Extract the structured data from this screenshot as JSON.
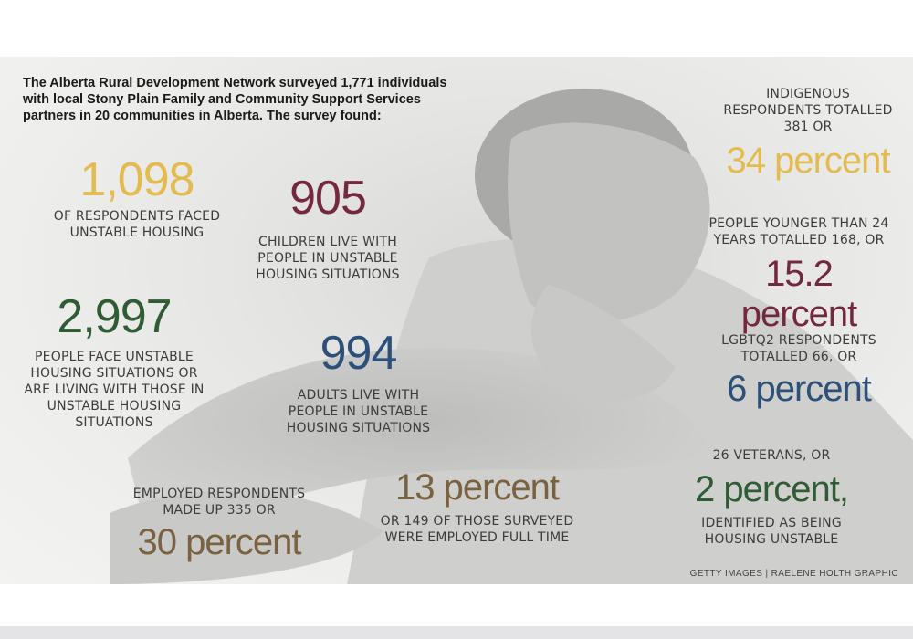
{
  "intro": "The Alberta Rural Development Network surveyed 1,771 individuals with local Stony Plain Family and Community Support Services partners in 20 communities in Alberta. The survey found:",
  "colors": {
    "yellow": "#e3bb4f",
    "maroon": "#73283f",
    "green": "#2f5b35",
    "blue": "#2c5078",
    "brown": "#7a6140"
  },
  "stats": {
    "unstable_housing": {
      "number": "1,098",
      "caption": "OF RESPONDENTS FACED UNSTABLE HOUSING"
    },
    "children": {
      "number": "905",
      "caption": "CHILDREN LIVE WITH PEOPLE IN UNSTABLE HOUSING SITUATIONS"
    },
    "people_face": {
      "number": "2,997",
      "caption": "PEOPLE FACE UNSTABLE HOUSING SITUATIONS OR ARE LIVING WITH THOSE IN UNSTABLE HOUSING SITUATIONS"
    },
    "adults": {
      "number": "994",
      "caption": "ADULTS LIVE WITH PEOPLE IN UNSTABLE HOUSING SITUATIONS"
    },
    "employed": {
      "caption": "EMPLOYED RESPONDENTS MADE UP 335 OR",
      "value": "30 percent"
    },
    "full_time": {
      "value": "13 percent",
      "caption": "OR 149 OF THOSE SURVEYED WERE EMPLOYED FULL TIME"
    },
    "indigenous": {
      "caption": "INDIGENOUS RESPONDENTS TOTALLED 381 OR",
      "value": "34 percent"
    },
    "younger": {
      "caption": "PEOPLE YOUNGER THAN 24 YEARS TOTALLED 168, OR",
      "value": "15.2 percent"
    },
    "lgbtq2": {
      "caption": "LGBTQ2 RESPONDENTS TOTALLED 66, OR",
      "value": "6 percent"
    },
    "veterans": {
      "caption_top": "26 VETERANS, OR",
      "value": "2 percent,",
      "caption_bottom": "IDENTIFIED AS BEING HOUSING UNSTABLE"
    }
  },
  "credit": "GETTY IMAGES | RAELENE HOLTH GRAPHIC"
}
